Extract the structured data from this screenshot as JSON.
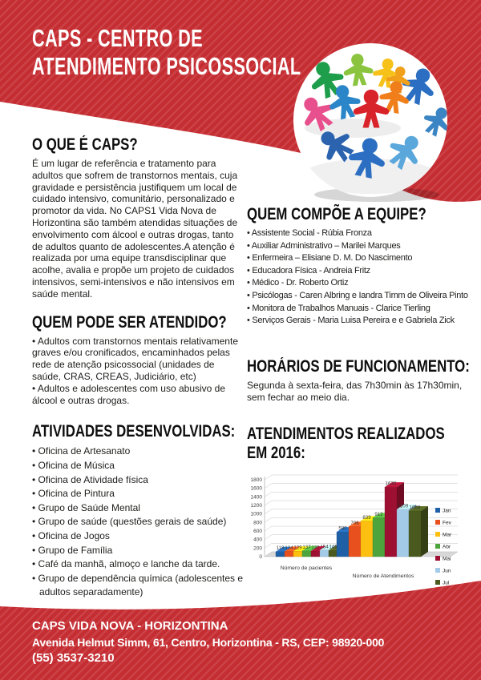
{
  "colors": {
    "red": "#c42d32",
    "red_stripe": "#cc4348",
    "heading": "#0e0e0e",
    "body_text": "#1d1d1b",
    "white": "#ffffff"
  },
  "header": {
    "title_line1": "CAPS - CENTRO DE",
    "title_line2": "ATENDIMENTO PSICOSSOCIAL"
  },
  "sections": {
    "o_que": {
      "heading": "O QUE É CAPS?",
      "body": "É um lugar de referência e tratamento para adultos que sofrem de transtornos mentais, cuja gravidade e persistência justifiquem um local de cuidado intensivo, comunitário, personalizado e promotor da vida. No CAPS1 Vida Nova de Horizontina são também atendidas situações de envolvimento com álcool e outras drogas, tanto de adultos quanto de adolescentes.A atenção é realizada por uma equipe transdisciplinar que acolhe, avalia e propõe um projeto de cuidados intensivos, semi-intensivos e não intensivos em saúde mental."
    },
    "quem_pode": {
      "heading": "QUEM PODE SER ATENDIDO?",
      "items": [
        "Adultos com transtornos mentais relativamente graves e/ou cronificados, encaminhados pelas rede de atenção psicossocial (unidades de saúde, CRAS, CREAS, Judiciário, etc)",
        "Adultos e adolescentes com uso abusivo de álcool e outras drogas."
      ]
    },
    "atividades": {
      "heading": "ATIVIDADES DESENVOLVIDAS:",
      "items": [
        "Oficina de Artesanato",
        "Oficina de Música",
        "Oficina de Atividade física",
        "Oficina de Pintura",
        "Grupo de Saúde Mental",
        "Grupo de saúde (questões gerais de saúde)",
        "Oficina de Jogos",
        "Grupo de Família",
        "Café da manhã, almoço e lanche da tarde.",
        "Grupo de dependência química (adolescentes e adultos separadamente)"
      ]
    },
    "equipe": {
      "heading": "QUEM COMPÕE A EQUIPE?",
      "items": [
        "Assistente Social - Rúbia Fronza",
        "Auxiliar Administrativo – Marilei Marques",
        "Enfermeira – Elisiane D. M. Do Nascimento",
        "Educadora Física - Andreia Fritz",
        "Médico - Dr. Roberto Ortiz",
        "Psicólogas - Caren Albring e Iandra Timm de Oliveira Pinto",
        "Monitora de Trabalhos Manuais - Clarice Tierling",
        "Serviços Gerais - Maria Luisa Pereira e e Gabriela Zick"
      ]
    },
    "horarios": {
      "heading": "HORÁRIOS DE FUNCIONAMENTO:",
      "body": "Segunda à sexta-feira, das 7h30min às 17h30min, sem fechar ao meio dia."
    },
    "atendimentos": {
      "heading_line1": "ATENDIMENTOS REALIZADOS",
      "heading_line2": "EM 2016:"
    }
  },
  "chart_data": {
    "type": "bar",
    "style": "3d-clustered",
    "categories": [
      "Número de pacientes",
      "Número de Atendimentos"
    ],
    "series": [
      {
        "name": "Jan",
        "color": "#1f5fa5",
        "values": [
          118,
          580
        ]
      },
      {
        "name": "Fev",
        "color": "#e8511d",
        "values": [
          124,
          706
        ]
      },
      {
        "name": "Mar",
        "color": "#fdc010",
        "values": [
          129,
          839
        ]
      },
      {
        "name": "Abr",
        "color": "#4ea43c",
        "values": [
          137,
          912
        ]
      },
      {
        "name": "Mai",
        "color": "#9e1031",
        "values": [
          132,
          1630
        ]
      },
      {
        "name": "Jun",
        "color": "#a3cbe8",
        "values": [
          154,
          1109
        ]
      },
      {
        "name": "Jul",
        "color": "#4a5a1e",
        "values": [
          146,
          1069
        ]
      }
    ],
    "ylim": [
      0,
      1800
    ],
    "ytick_step": 200,
    "grid": true,
    "legend_position": "right"
  },
  "footer": {
    "line1": "CAPS VIDA NOVA - HORIZONTINA",
    "line2": "Avenida Helmut Simm, 61, Centro, Horizontina - RS, CEP: 98920-000",
    "line3": "(55) 3537-3210"
  }
}
